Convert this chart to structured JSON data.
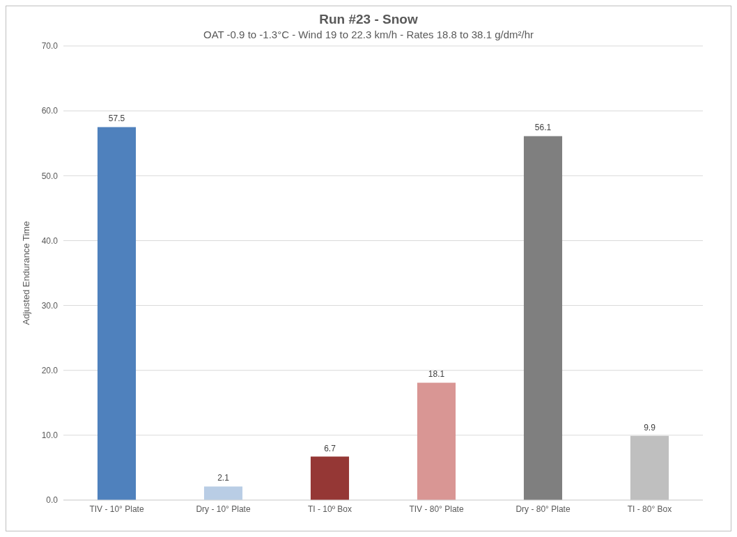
{
  "chart_data": {
    "type": "bar",
    "title": "Run #23 - Snow",
    "subtitle": "OAT -0.9 to -1.3°C - Wind 19 to 22.3 km/h - Rates 18.8 to 38.1 g/dm²/hr",
    "ylabel": "Adjusted Endurance Time",
    "categories": [
      "TIV - 10° Plate",
      "Dry - 10° Plate",
      "TI - 10º Box",
      "TIV - 80° Plate",
      "Dry - 80° Plate",
      "TI - 80° Box"
    ],
    "values": [
      57.5,
      2.1,
      6.7,
      18.1,
      56.1,
      9.9
    ],
    "colors": [
      "#4f81bd",
      "#b9cde5",
      "#953735",
      "#d99694",
      "#7f7f7f",
      "#bfbfbf"
    ],
    "ylim": [
      0,
      70
    ],
    "yticks": [
      {
        "value": 0,
        "label": "0.0"
      },
      {
        "value": 10,
        "label": "10.0"
      },
      {
        "value": 20,
        "label": "20.0"
      },
      {
        "value": 30,
        "label": "30.0"
      },
      {
        "value": 40,
        "label": "40.0"
      },
      {
        "value": 50,
        "label": "50.0"
      },
      {
        "value": 60,
        "label": "60.0"
      },
      {
        "value": 70,
        "label": "70.0"
      }
    ],
    "grid": "y",
    "data_labels": true
  }
}
